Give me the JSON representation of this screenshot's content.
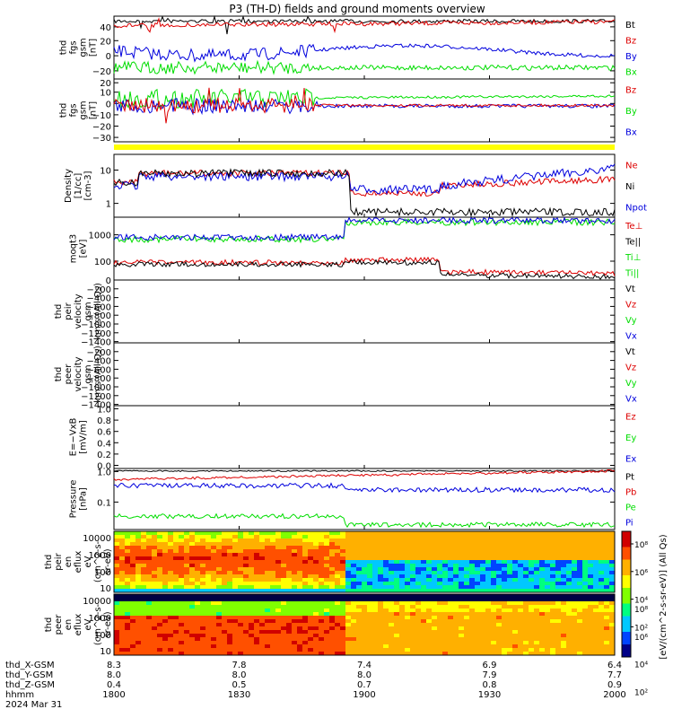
{
  "title": "P3 (TH-D) fields and ground moments overview",
  "colors": {
    "black": "#000000",
    "red": "#dd0000",
    "green": "#00dd00",
    "blue": "#0000dd",
    "yellow": "#ffff00"
  },
  "x_ticks": [
    "1800",
    "1830",
    "1900",
    "1930",
    "2000"
  ],
  "ephemeris": {
    "rows": [
      {
        "label": "thd_X-GSM",
        "values": [
          "8.3",
          "7.8",
          "7.4",
          "6.9",
          "6.4"
        ]
      },
      {
        "label": "thd_Y-GSM",
        "values": [
          "8.0",
          "8.0",
          "8.0",
          "7.9",
          "7.7"
        ]
      },
      {
        "label": "thd_Z-GSM",
        "values": [
          "0.4",
          "0.5",
          "0.7",
          "0.8",
          "0.9"
        ]
      },
      {
        "label": "hhmm",
        "values": []
      }
    ],
    "date": "2024 Mar 31"
  },
  "panels": [
    {
      "id": "fgs_gsm",
      "ylabel": [
        "thd",
        "fgs",
        "gsm",
        "[nT]"
      ],
      "yticks": [
        "40",
        "20",
        "0",
        "−20"
      ],
      "legend": [
        {
          "t": "Bt",
          "c": "black"
        },
        {
          "t": "Bz",
          "c": "red"
        },
        {
          "t": "By",
          "c": "blue"
        },
        {
          "t": "Bx",
          "c": "green"
        }
      ]
    },
    {
      "id": "fgs_gse",
      "ylabel": [
        "thd",
        "fgs",
        "gsm",
        "[nT]"
      ],
      "yticks": [
        "20",
        "10",
        "0",
        "−10",
        "−20",
        "−30"
      ],
      "legend": [
        {
          "t": "Bz",
          "c": "red"
        },
        {
          "t": "By",
          "c": "green"
        },
        {
          "t": "Bx",
          "c": "blue"
        }
      ]
    },
    {
      "id": "density",
      "ylabel": [
        "Density",
        "[1/cc]",
        "[cm-3]"
      ],
      "yticks": [
        "10",
        "1"
      ],
      "legend": [
        {
          "t": "Ne",
          "c": "red"
        },
        {
          "t": "Ni",
          "c": "black"
        },
        {
          "t": "Npot",
          "c": "blue"
        }
      ]
    },
    {
      "id": "temp",
      "ylabel": [
        "moqt3",
        "[eV]"
      ],
      "yticks": [
        "1000",
        "100"
      ],
      "legend": [
        {
          "t": "Te⊥",
          "c": "red"
        },
        {
          "t": "Te||",
          "c": "black"
        },
        {
          "t": "Ti⊥",
          "c": "green"
        },
        {
          "t": "Ti||",
          "c": "green"
        }
      ]
    },
    {
      "id": "vi",
      "ylabel": [
        "thd",
        "peir",
        "velocity",
        "gsm",
        "km/s (All Qs)"
      ],
      "yticks": [
        "0",
        "−200",
        "−400",
        "−600",
        "−800",
        "−1000",
        "−1200",
        "−1400"
      ],
      "legend": [
        {
          "t": "Vt",
          "c": "black"
        },
        {
          "t": "Vz",
          "c": "red"
        },
        {
          "t": "Vy",
          "c": "green"
        },
        {
          "t": "Vx",
          "c": "blue"
        }
      ]
    },
    {
      "id": "ve",
      "ylabel": [
        "thd",
        "peer",
        "velocity",
        "gsm",
        "km/s (All Qs)"
      ],
      "yticks": [
        "−200",
        "−400",
        "−600",
        "−800",
        "−1000",
        "−1200",
        "−1400"
      ],
      "legend": [
        {
          "t": "Vt",
          "c": "black"
        },
        {
          "t": "Vz",
          "c": "red"
        },
        {
          "t": "Vy",
          "c": "green"
        },
        {
          "t": "Vx",
          "c": "blue"
        }
      ]
    },
    {
      "id": "efield",
      "ylabel": [
        "E=−VxB",
        "[mV/m]"
      ],
      "yticks": [
        "1.0",
        "0.8",
        "0.6",
        "0.4",
        "0.2",
        "0.0"
      ],
      "legend": [
        {
          "t": "Ez",
          "c": "red"
        },
        {
          "t": "Ey",
          "c": "green"
        },
        {
          "t": "Ex",
          "c": "blue"
        }
      ]
    },
    {
      "id": "pressure",
      "ylabel": [
        "Pressure",
        "[nPa]"
      ],
      "yticks": [
        "1.0",
        "0.1"
      ],
      "legend": [
        {
          "t": "Pt",
          "c": "black"
        },
        {
          "t": "Pb",
          "c": "red"
        },
        {
          "t": "Pe",
          "c": "green"
        },
        {
          "t": "Pi",
          "c": "blue"
        }
      ]
    },
    {
      "id": "ion_spec",
      "ylabel": [
        "thd",
        "peir",
        "en",
        "eflux",
        "eV",
        "(cm^2-s-",
        "sr-eV)"
      ],
      "yticks": [
        "10000",
        "1000",
        "100",
        "10"
      ],
      "legend": []
    },
    {
      "id": "ele_spec",
      "ylabel": [
        "thd",
        "peer",
        "en",
        "eflux",
        "eV",
        "(cm^2-s-",
        "sr-eV)"
      ],
      "yticks": [
        "10000",
        "1000",
        "100",
        "10"
      ],
      "legend": []
    }
  ],
  "colorbar": {
    "label": "[eV/(cm^2-s-sr-eV)] (All Qs)",
    "ticks": [
      "10⁸",
      "10⁶",
      "10⁴",
      "10²"
    ]
  },
  "chart_data": {
    "type": "line",
    "title": "P3 (TH-D) fields and ground moments overview",
    "x": [
      "1800",
      "1830",
      "1900",
      "1930",
      "2000"
    ],
    "xlabel": "hhmm",
    "series": [
      {
        "name": "Bt",
        "panel": "fgs_gsm",
        "values": [
          42,
          40,
          41,
          43,
          45
        ]
      },
      {
        "name": "Bz",
        "panel": "fgs_gsm",
        "values": [
          37,
          36,
          40,
          42,
          45
        ]
      },
      {
        "name": "By",
        "panel": "fgs_gsm",
        "values": [
          5,
          3,
          2,
          2,
          1
        ]
      },
      {
        "name": "Bx",
        "panel": "fgs_gsm",
        "values": [
          -12,
          -15,
          -10,
          -12,
          -13
        ]
      },
      {
        "name": "Ne",
        "panel": "density",
        "values": [
          5,
          6,
          2,
          4,
          6
        ]
      },
      {
        "name": "Ni",
        "panel": "density",
        "values": [
          6,
          5,
          0.5,
          0.6,
          0.8
        ]
      },
      {
        "name": "Npot",
        "panel": "density",
        "values": [
          4,
          5,
          1.5,
          4,
          15
        ]
      },
      {
        "name": "Pt",
        "panel": "pressure",
        "values": [
          0.9,
          0.9,
          0.9,
          0.9,
          0.9
        ]
      },
      {
        "name": "Pb",
        "panel": "pressure",
        "values": [
          0.6,
          0.7,
          0.8,
          0.85,
          0.95
        ]
      },
      {
        "name": "Pe",
        "panel": "pressure",
        "values": [
          0.02,
          0.03,
          0.01,
          0.012,
          0.01
        ]
      },
      {
        "name": "Pi",
        "panel": "pressure",
        "values": [
          0.25,
          0.3,
          0.15,
          0.16,
          0.2
        ]
      }
    ]
  }
}
